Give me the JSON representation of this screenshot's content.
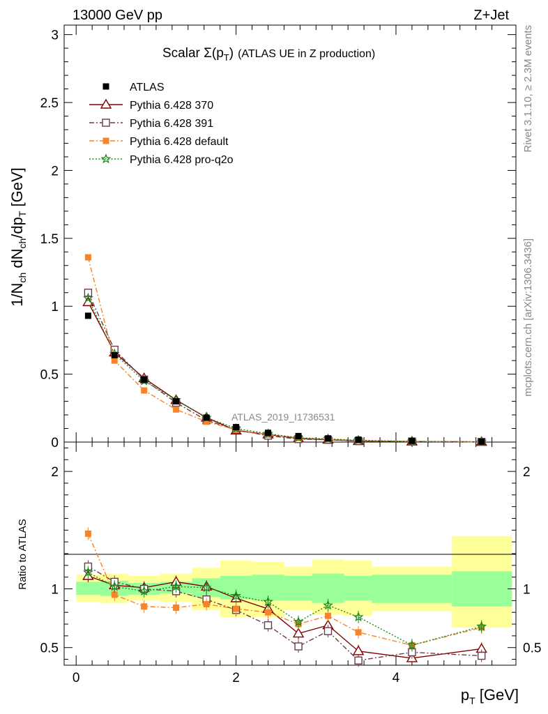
{
  "header": {
    "left": "13000 GeV pp",
    "right": "Z+Jet"
  },
  "chart_data": {
    "type": "line",
    "title": "Scalar Σ(p_T) (ATLAS UE in Z production)",
    "analysis_label": "ATLAS_2019_I1736531",
    "side_label_top": "Rivet 3.1.10, ≥ 2.3M events",
    "side_label_bottom": "mcplots.cern.ch [arXiv:1306.3436]",
    "xlabel": "p_T [GeV]",
    "ylabel": "1/N_ch dN_ch/dp_T [GeV]",
    "ratio_ylabel": "Ratio to ATLAS",
    "xlim": [
      -0.15,
      5.5
    ],
    "ylim": [
      0,
      3.07
    ],
    "ratio_ylim": [
      0.35,
      2.25
    ],
    "grid": false,
    "legend_position": "top-left",
    "x_ticks": [
      0,
      2,
      4
    ],
    "y_ticks": [
      0,
      0.5,
      1,
      1.5,
      2,
      2.5,
      3
    ],
    "ratio_ticks": [
      0.5,
      1,
      2
    ],
    "x": [
      0.15,
      0.48,
      0.85,
      1.25,
      1.63,
      2.0,
      2.4,
      2.78,
      3.15,
      3.53,
      4.2,
      5.07
    ],
    "bands": {
      "x_edges": [
        0.0,
        0.3,
        0.65,
        1.05,
        1.45,
        1.8,
        2.2,
        2.6,
        2.95,
        3.35,
        3.7,
        4.7,
        5.45
      ],
      "inner": [
        [
          0.95,
          1.06
        ],
        [
          0.94,
          1.07
        ],
        [
          0.95,
          1.05
        ],
        [
          0.96,
          1.06
        ],
        [
          0.93,
          1.09
        ],
        [
          0.91,
          1.11
        ],
        [
          0.9,
          1.12
        ],
        [
          0.9,
          1.11
        ],
        [
          0.88,
          1.13
        ],
        [
          0.9,
          1.11
        ],
        [
          0.88,
          1.12
        ],
        [
          0.85,
          1.15
        ]
      ],
      "outer": [
        [
          0.89,
          1.12
        ],
        [
          0.88,
          1.13
        ],
        [
          0.9,
          1.11
        ],
        [
          0.89,
          1.13
        ],
        [
          0.82,
          1.18
        ],
        [
          0.76,
          1.24
        ],
        [
          0.76,
          1.23
        ],
        [
          0.82,
          1.19
        ],
        [
          0.78,
          1.25
        ],
        [
          0.77,
          1.24
        ],
        [
          0.81,
          1.19
        ],
        [
          0.67,
          1.45
        ]
      ]
    },
    "series": [
      {
        "name": "ATLAS",
        "color": "#000000",
        "marker": "filled-square",
        "line": "none",
        "values": [
          0.93,
          0.64,
          0.46,
          0.3,
          0.18,
          0.11,
          0.068,
          0.044,
          0.027,
          0.018,
          0.009,
          0.003
        ]
      },
      {
        "name": "Pythia 6.428 370",
        "color": "#800000",
        "marker": "open-triangle",
        "line": "solid",
        "values": [
          1.03,
          0.66,
          0.47,
          0.31,
          0.18,
          0.085,
          0.056,
          0.027,
          0.018,
          0.008,
          0.004,
          0.0015
        ],
        "ratio": [
          1.11,
          1.03,
          1.01,
          1.06,
          1.02,
          0.92,
          0.83,
          0.62,
          0.69,
          0.47,
          0.41,
          0.49
        ]
      },
      {
        "name": "Pythia 6.428 391",
        "color": "#6b3b4a",
        "marker": "open-square",
        "line": "dashdot",
        "values": [
          1.1,
          0.68,
          0.46,
          0.29,
          0.16,
          0.09,
          0.047,
          0.022,
          0.017,
          0.007,
          0.004,
          0.0013
        ],
        "ratio": [
          1.19,
          1.06,
          1.0,
          0.98,
          0.91,
          0.82,
          0.69,
          0.51,
          0.64,
          0.39,
          0.46,
          0.43
        ]
      },
      {
        "name": "Pythia 6.428 default",
        "color": "#f5842a",
        "marker": "filled-square",
        "line": "dashdot",
        "values": [
          1.36,
          0.6,
          0.38,
          0.24,
          0.15,
          0.09,
          0.055,
          0.031,
          0.021,
          0.011,
          0.005,
          0.002
        ],
        "ratio": [
          1.47,
          0.95,
          0.85,
          0.84,
          0.87,
          0.83,
          0.8,
          0.7,
          0.77,
          0.63,
          0.52,
          0.67
        ]
      },
      {
        "name": "Pythia 6.428 pro-q2o",
        "color": "#1a8a1a",
        "marker": "open-star",
        "line": "dotted",
        "values": [
          1.06,
          0.65,
          0.45,
          0.31,
          0.18,
          0.1,
          0.061,
          0.032,
          0.023,
          0.014,
          0.0047,
          0.002
        ],
        "ratio": [
          1.14,
          1.02,
          0.98,
          1.02,
          1.01,
          0.94,
          0.89,
          0.72,
          0.86,
          0.76,
          0.52,
          0.68
        ]
      }
    ]
  }
}
